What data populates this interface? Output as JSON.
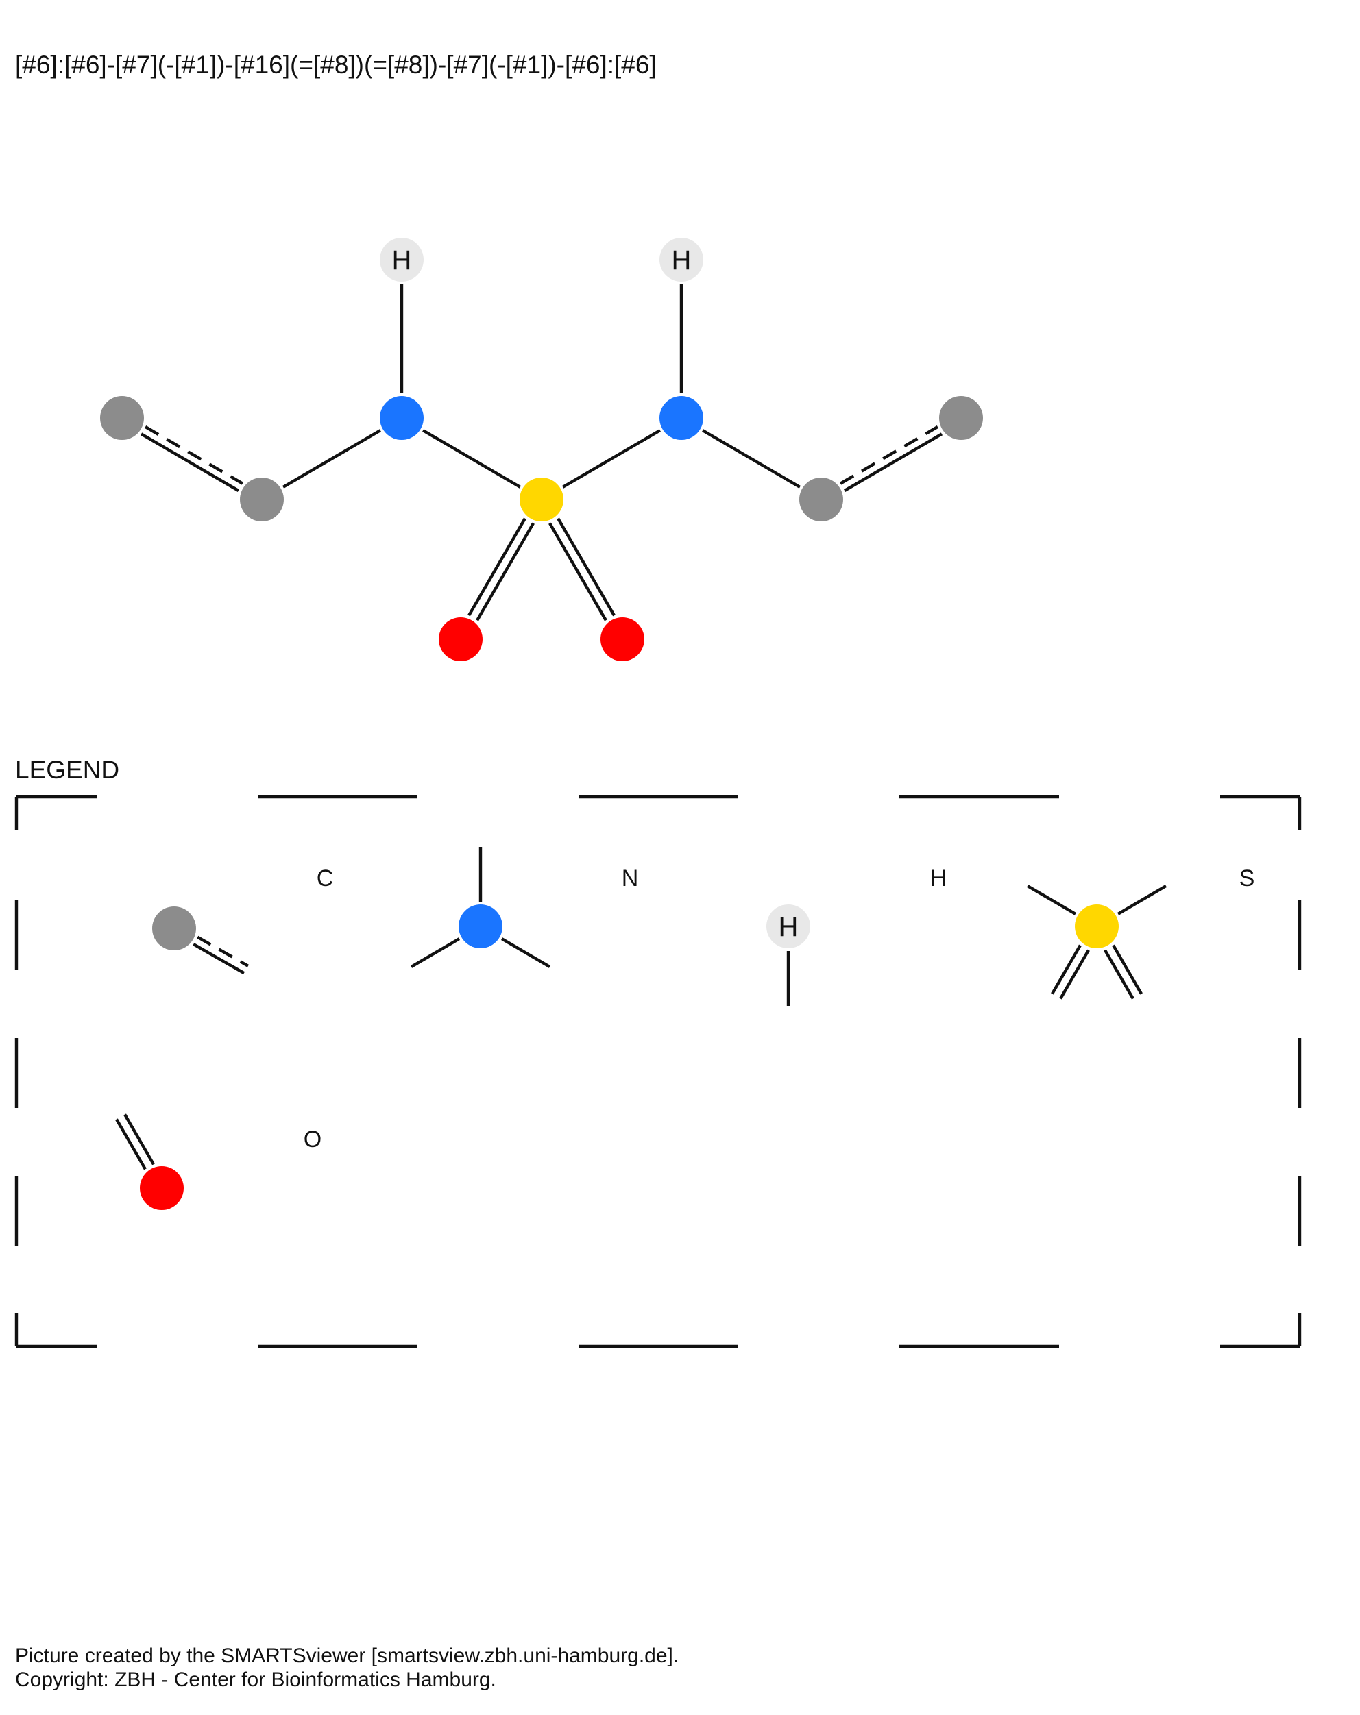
{
  "header": {
    "smarts": "[#6]:[#6]-[#7](-[#1])-[#16](=[#8])(=[#8])-[#7](-[#1])-[#6]:[#6]"
  },
  "colors": {
    "carbon": "#8c8c8c",
    "nitrogen": "#1a75ff",
    "hydrogen": "#e8e8e8",
    "sulfur": "#ffd700",
    "oxygen": "#ff0000",
    "bond": "#111111"
  },
  "molecule": {
    "atoms": [
      {
        "id": "c1",
        "element": "C",
        "label": ""
      },
      {
        "id": "c2",
        "element": "C",
        "label": ""
      },
      {
        "id": "n1",
        "element": "N",
        "label": ""
      },
      {
        "id": "h1",
        "element": "H",
        "label": "H"
      },
      {
        "id": "s1",
        "element": "S",
        "label": ""
      },
      {
        "id": "o1",
        "element": "O",
        "label": ""
      },
      {
        "id": "o2",
        "element": "O",
        "label": ""
      },
      {
        "id": "n2",
        "element": "N",
        "label": ""
      },
      {
        "id": "h2",
        "element": "H",
        "label": "H"
      },
      {
        "id": "c3",
        "element": "C",
        "label": ""
      },
      {
        "id": "c4",
        "element": "C",
        "label": ""
      }
    ],
    "bonds": [
      {
        "from": "c1",
        "to": "c2",
        "order": "aromatic"
      },
      {
        "from": "c2",
        "to": "n1",
        "order": "single"
      },
      {
        "from": "n1",
        "to": "h1",
        "order": "single"
      },
      {
        "from": "n1",
        "to": "s1",
        "order": "single"
      },
      {
        "from": "s1",
        "to": "o1",
        "order": "double"
      },
      {
        "from": "s1",
        "to": "o2",
        "order": "double"
      },
      {
        "from": "s1",
        "to": "n2",
        "order": "single"
      },
      {
        "from": "n2",
        "to": "h2",
        "order": "single"
      },
      {
        "from": "n2",
        "to": "c3",
        "order": "single"
      },
      {
        "from": "c3",
        "to": "c4",
        "order": "aromatic"
      }
    ]
  },
  "legend": {
    "title": "LEGEND",
    "items": [
      {
        "element": "C",
        "label": "C"
      },
      {
        "element": "N",
        "label": "N"
      },
      {
        "element": "H",
        "label": "H",
        "glyph": "H"
      },
      {
        "element": "S",
        "label": "S"
      },
      {
        "element": "O",
        "label": "O"
      }
    ]
  },
  "footer": {
    "line1": "Picture created by the SMARTSviewer [smartsview.zbh.uni-hamburg.de].",
    "line2": "Copyright: ZBH - Center for Bioinformatics Hamburg."
  }
}
